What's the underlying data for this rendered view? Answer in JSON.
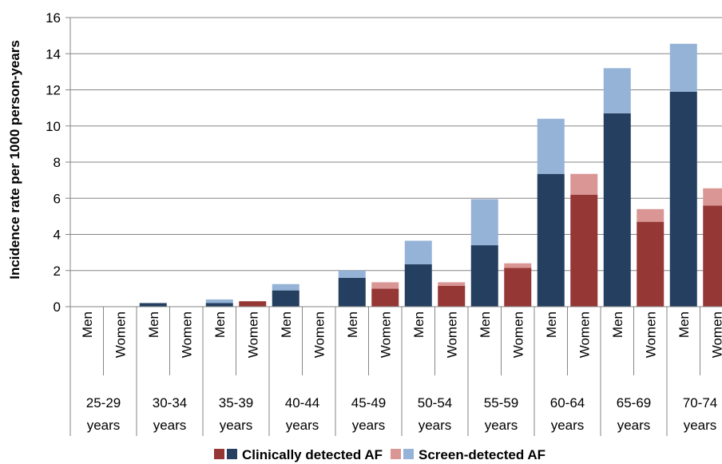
{
  "chart_data": {
    "type": "bar",
    "stacked": true,
    "ylabel": "Incidence rate per 1000 person-years",
    "ylim": [
      0,
      16
    ],
    "yticks": [
      "0",
      "2",
      "4",
      "6",
      "8",
      "10",
      "12",
      "14",
      "16"
    ],
    "grid": true,
    "legend_position": "bottom",
    "groups": [
      "25-29 years",
      "30-34 years",
      "35-39 years",
      "40-44 years",
      "45-49 years",
      "50-54 years",
      "55-59 years",
      "60-64 years",
      "65-69 years",
      "70-74 years"
    ],
    "group_labels": [
      [
        "25-29",
        "years"
      ],
      [
        "30-34",
        "years"
      ],
      [
        "35-39",
        "years"
      ],
      [
        "40-44",
        "years"
      ],
      [
        "45-49",
        "years"
      ],
      [
        "50-54",
        "years"
      ],
      [
        "55-59",
        "years"
      ],
      [
        "60-64",
        "years"
      ],
      [
        "65-69",
        "years"
      ],
      [
        "70-74",
        "years"
      ]
    ],
    "sex_labels": [
      "Men",
      "Women"
    ],
    "bars": [
      {
        "group": "25-29 years",
        "sex": "Men",
        "clinical": 0,
        "screen": 0
      },
      {
        "group": "25-29 years",
        "sex": "Women",
        "clinical": 0,
        "screen": 0
      },
      {
        "group": "30-34 years",
        "sex": "Men",
        "clinical": 0.2,
        "screen": 0
      },
      {
        "group": "30-34 years",
        "sex": "Women",
        "clinical": 0,
        "screen": 0
      },
      {
        "group": "35-39 years",
        "sex": "Men",
        "clinical": 0.2,
        "screen": 0.2
      },
      {
        "group": "35-39 years",
        "sex": "Women",
        "clinical": 0.3,
        "screen": 0
      },
      {
        "group": "40-44 years",
        "sex": "Men",
        "clinical": 0.9,
        "screen": 0.35
      },
      {
        "group": "40-44 years",
        "sex": "Women",
        "clinical": 0,
        "screen": 0
      },
      {
        "group": "45-49 years",
        "sex": "Men",
        "clinical": 1.6,
        "screen": 0.4
      },
      {
        "group": "45-49 years",
        "sex": "Women",
        "clinical": 1.0,
        "screen": 0.35
      },
      {
        "group": "50-54 years",
        "sex": "Men",
        "clinical": 2.35,
        "screen": 1.3
      },
      {
        "group": "50-54 years",
        "sex": "Women",
        "clinical": 1.15,
        "screen": 0.2
      },
      {
        "group": "55-59 years",
        "sex": "Men",
        "clinical": 3.4,
        "screen": 2.55
      },
      {
        "group": "55-59 years",
        "sex": "Women",
        "clinical": 2.15,
        "screen": 0.25
      },
      {
        "group": "60-64 years",
        "sex": "Men",
        "clinical": 7.35,
        "screen": 3.05
      },
      {
        "group": "60-64 years",
        "sex": "Women",
        "clinical": 6.2,
        "screen": 1.15
      },
      {
        "group": "65-69 years",
        "sex": "Men",
        "clinical": 10.7,
        "screen": 2.5
      },
      {
        "group": "65-69 years",
        "sex": "Women",
        "clinical": 4.7,
        "screen": 0.7
      },
      {
        "group": "70-74 years",
        "sex": "Men",
        "clinical": 11.9,
        "screen": 2.65
      },
      {
        "group": "70-74 years",
        "sex": "Women",
        "clinical": 5.6,
        "screen": 0.95
      }
    ],
    "series": [
      {
        "name": "Clinically detected AF",
        "colors": {
          "Men": "#243f60",
          "Women": "#953735"
        }
      },
      {
        "name": "Screen-detected AF",
        "colors": {
          "Men": "#95b3d7",
          "Women": "#d99694"
        }
      }
    ],
    "colors": {
      "grid": "#868686",
      "axis": "#868686",
      "text": "#000000"
    }
  }
}
